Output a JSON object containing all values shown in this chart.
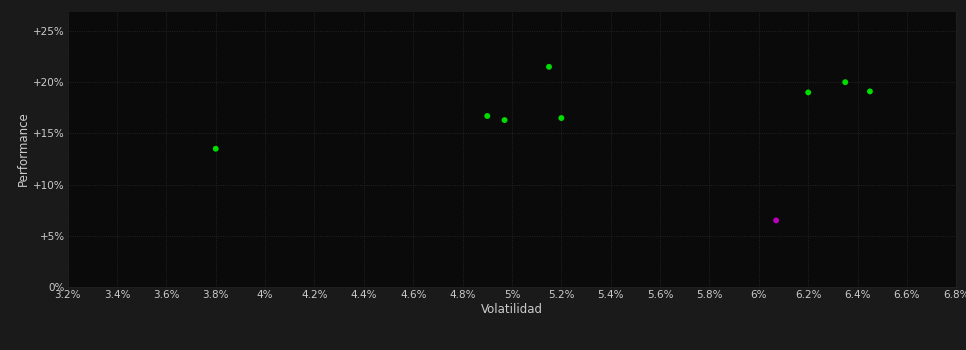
{
  "background_color": "#1a1a1a",
  "plot_bg_color": "#0a0a0a",
  "grid_color": "#2a2a2a",
  "text_color": "#cccccc",
  "xlabel": "Volatilidad",
  "ylabel": "Performance",
  "xlim": [
    0.032,
    0.068
  ],
  "ylim": [
    0.0,
    0.27
  ],
  "xticks": [
    0.032,
    0.034,
    0.036,
    0.038,
    0.04,
    0.042,
    0.044,
    0.046,
    0.048,
    0.05,
    0.052,
    0.054,
    0.056,
    0.058,
    0.06,
    0.062,
    0.064,
    0.066,
    0.068
  ],
  "yticks": [
    0.0,
    0.05,
    0.1,
    0.15,
    0.2,
    0.25
  ],
  "ytick_labels": [
    "0%",
    "+5%",
    "+10%",
    "+15%",
    "+20%",
    "+25%"
  ],
  "xtick_labels": [
    "3.2%",
    "3.4%",
    "3.6%",
    "3.8%",
    "4%",
    "4.2%",
    "4.4%",
    "4.6%",
    "4.8%",
    "5%",
    "5.2%",
    "5.4%",
    "5.6%",
    "5.8%",
    "6%",
    "6.2%",
    "6.4%",
    "6.6%",
    "6.8%"
  ],
  "green_points_x": [
    0.038,
    0.049,
    0.0497,
    0.0515,
    0.052,
    0.062,
    0.0635,
    0.0645
  ],
  "green_points_y": [
    0.135,
    0.167,
    0.163,
    0.215,
    0.165,
    0.19,
    0.2,
    0.191
  ],
  "magenta_points_x": [
    0.0607
  ],
  "magenta_points_y": [
    0.065
  ],
  "point_color_green": "#00dd00",
  "point_color_magenta": "#bb00bb",
  "marker_size": 18,
  "font_size_ticks": 7.5,
  "font_size_labels": 8.5
}
